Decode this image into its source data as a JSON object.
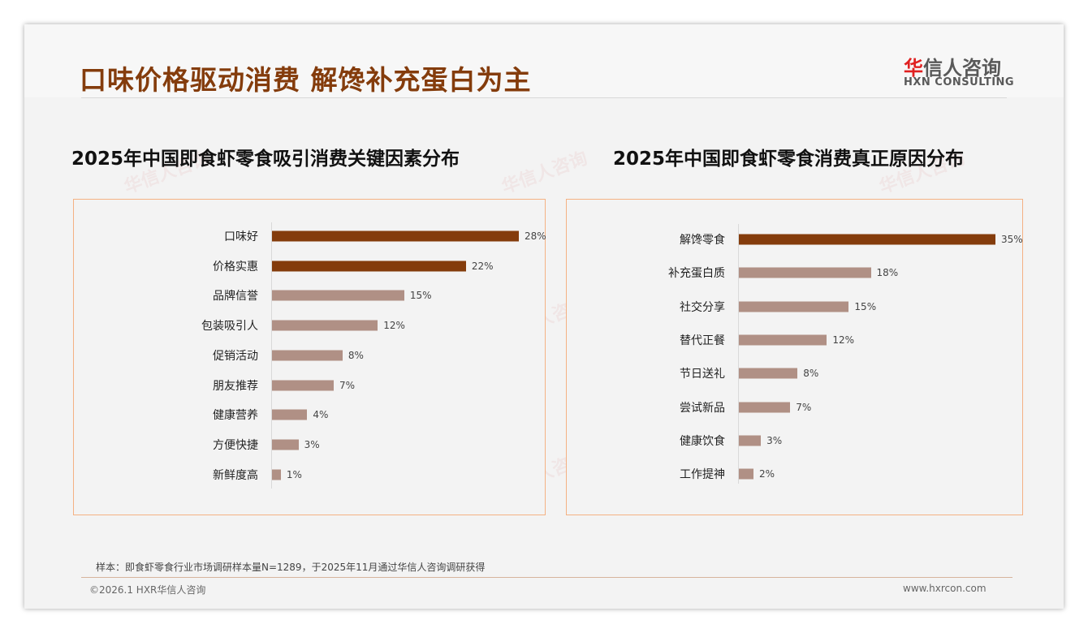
{
  "header": {
    "title": "口味价格驱动消费 解馋补充蛋白为主",
    "logo_cn_red": "华",
    "logo_cn": "信人咨询",
    "logo_en": "HXN CONSULTING"
  },
  "colors": {
    "accent": "#843c0c",
    "bar_light": "#b09085",
    "border": "#f4b183"
  },
  "chart_data": [
    {
      "type": "bar",
      "orientation": "horizontal",
      "title": "2025年中国即食虾零食吸引消费关键因素分布",
      "categories": [
        "口味好",
        "价格实惠",
        "品牌信誉",
        "包装吸引人",
        "促销活动",
        "朋友推荐",
        "健康营养",
        "方便快捷",
        "新鲜度高"
      ],
      "values": [
        28,
        22,
        15,
        12,
        8,
        7,
        4,
        3,
        1
      ],
      "labels": [
        "28%",
        "22%",
        "15%",
        "12%",
        "8%",
        "7%",
        "4%",
        "3%",
        "1%"
      ],
      "highlighted": [
        0,
        1
      ],
      "unit": "%",
      "xlim": [
        0,
        28
      ]
    },
    {
      "type": "bar",
      "orientation": "horizontal",
      "title": "2025年中国即食虾零食消费真正原因分布",
      "categories": [
        "解馋零食",
        "补充蛋白质",
        "社交分享",
        "替代正餐",
        "节日送礼",
        "尝试新品",
        "健康饮食",
        "工作提神"
      ],
      "values": [
        35,
        18,
        15,
        12,
        8,
        7,
        3,
        2
      ],
      "labels": [
        "35%",
        "18%",
        "15%",
        "12%",
        "8%",
        "7%",
        "3%",
        "2%"
      ],
      "highlighted": [
        0
      ],
      "unit": "%",
      "xlim": [
        0,
        35
      ]
    }
  ],
  "footer": {
    "note": "样本：即食虾零食行业市场调研样本量N=1289，于2025年11月通过华信人咨询调研获得",
    "copyright": "©2026.1 HXR华信人咨询",
    "website": "www.hxrcon.com"
  },
  "watermark": {
    "cn": "华信人咨询",
    "en": "HXN CONSULTING"
  }
}
